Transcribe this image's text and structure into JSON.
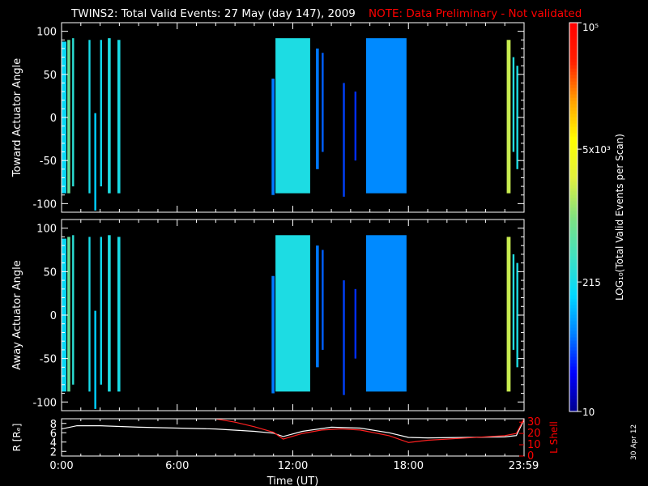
{
  "header": {
    "title": "TWINS2: Total Valid Events: 27 May (day 147), 2009",
    "note": "NOTE: Data Preliminary - Not validated"
  },
  "footer": {
    "date_stamp": "30 Apr 12"
  },
  "colors": {
    "background": "#000000",
    "axes": "#ffffff",
    "note": "#ff0000",
    "r_line": "#ffffff",
    "lshell_line": "#ff2020",
    "colorscale": [
      "#00008c",
      "#0000ff",
      "#0080ff",
      "#00d8ff",
      "#40e0c0",
      "#80e080",
      "#e0f040",
      "#ffff00",
      "#ffa000",
      "#ff2000",
      "#ff0000"
    ]
  },
  "chart_data": [
    {
      "type": "heatmap",
      "panel": "toward",
      "ylabel": "Toward Actuator Angle",
      "ylim": [
        -110,
        110
      ],
      "yticks": [
        "100",
        "50",
        "0",
        "-50",
        "-100"
      ],
      "xlim_hours": [
        0,
        24
      ],
      "bands": [
        {
          "t0": 0.0,
          "t1": 0.25,
          "value": 180,
          "y0": -88,
          "y1": 88
        },
        {
          "t0": 0.3,
          "t1": 0.45,
          "value": 700,
          "y0": -88,
          "y1": 90
        },
        {
          "t0": 0.55,
          "t1": 0.65,
          "value": 300,
          "y0": -80,
          "y1": 92
        },
        {
          "t0": 1.4,
          "t1": 1.5,
          "value": 220,
          "y0": -88,
          "y1": 90
        },
        {
          "t0": 1.7,
          "t1": 1.8,
          "value": 150,
          "y0": -108,
          "y1": 5
        },
        {
          "t0": 2.0,
          "t1": 2.1,
          "value": 200,
          "y0": -80,
          "y1": 90
        },
        {
          "t0": 2.4,
          "t1": 2.55,
          "value": 250,
          "y0": -88,
          "y1": 92
        },
        {
          "t0": 2.9,
          "t1": 3.05,
          "value": 230,
          "y0": -88,
          "y1": 90
        },
        {
          "t0": 10.9,
          "t1": 11.05,
          "value": 60,
          "y0": -90,
          "y1": 45
        },
        {
          "t0": 11.1,
          "t1": 12.9,
          "value": 240,
          "y0": -88,
          "y1": 92
        },
        {
          "t0": 13.2,
          "t1": 13.35,
          "value": 60,
          "y0": -60,
          "y1": 80
        },
        {
          "t0": 13.5,
          "t1": 13.6,
          "value": 50,
          "y0": -40,
          "y1": 75
        },
        {
          "t0": 14.6,
          "t1": 14.7,
          "value": 40,
          "y0": -92,
          "y1": 40
        },
        {
          "t0": 15.2,
          "t1": 15.3,
          "value": 35,
          "y0": -50,
          "y1": 30
        },
        {
          "t0": 15.8,
          "t1": 17.9,
          "value": 70,
          "y0": -88,
          "y1": 92
        },
        {
          "t0": 23.1,
          "t1": 23.3,
          "value": 2000,
          "y0": -88,
          "y1": 90
        },
        {
          "t0": 23.4,
          "t1": 23.5,
          "value": 260,
          "y0": -40,
          "y1": 70
        },
        {
          "t0": 23.6,
          "t1": 23.7,
          "value": 240,
          "y0": -60,
          "y1": 60
        }
      ]
    },
    {
      "type": "heatmap",
      "panel": "away",
      "ylabel": "Away Actuator Angle",
      "ylim": [
        -110,
        110
      ],
      "yticks": [
        "100",
        "50",
        "0",
        "-50",
        "-100"
      ],
      "xlim_hours": [
        0,
        24
      ],
      "bands": [
        {
          "t0": 0.0,
          "t1": 0.25,
          "value": 180,
          "y0": -88,
          "y1": 88
        },
        {
          "t0": 0.3,
          "t1": 0.45,
          "value": 700,
          "y0": -88,
          "y1": 90
        },
        {
          "t0": 0.55,
          "t1": 0.65,
          "value": 300,
          "y0": -80,
          "y1": 92
        },
        {
          "t0": 1.4,
          "t1": 1.5,
          "value": 220,
          "y0": -88,
          "y1": 90
        },
        {
          "t0": 1.7,
          "t1": 1.8,
          "value": 150,
          "y0": -108,
          "y1": 5
        },
        {
          "t0": 2.0,
          "t1": 2.1,
          "value": 200,
          "y0": -80,
          "y1": 90
        },
        {
          "t0": 2.4,
          "t1": 2.55,
          "value": 250,
          "y0": -88,
          "y1": 92
        },
        {
          "t0": 2.9,
          "t1": 3.05,
          "value": 230,
          "y0": -88,
          "y1": 90
        },
        {
          "t0": 10.9,
          "t1": 11.05,
          "value": 60,
          "y0": -90,
          "y1": 45
        },
        {
          "t0": 11.1,
          "t1": 12.9,
          "value": 240,
          "y0": -88,
          "y1": 92
        },
        {
          "t0": 13.2,
          "t1": 13.35,
          "value": 60,
          "y0": -60,
          "y1": 80
        },
        {
          "t0": 13.5,
          "t1": 13.6,
          "value": 50,
          "y0": -40,
          "y1": 75
        },
        {
          "t0": 14.6,
          "t1": 14.7,
          "value": 40,
          "y0": -92,
          "y1": 40
        },
        {
          "t0": 15.2,
          "t1": 15.3,
          "value": 35,
          "y0": -50,
          "y1": 30
        },
        {
          "t0": 15.8,
          "t1": 17.9,
          "value": 70,
          "y0": -88,
          "y1": 92
        },
        {
          "t0": 23.1,
          "t1": 23.3,
          "value": 2000,
          "y0": -88,
          "y1": 90
        },
        {
          "t0": 23.4,
          "t1": 23.5,
          "value": 260,
          "y0": -40,
          "y1": 70
        },
        {
          "t0": 23.6,
          "t1": 23.7,
          "value": 240,
          "y0": -60,
          "y1": 60
        }
      ]
    },
    {
      "type": "line",
      "panel": "orbit",
      "ylabel": "R [Rₑ]",
      "y2label": "L Shell",
      "xlabel": "Time (UT)",
      "xticks": [
        {
          "hour": 0,
          "label": "0:00"
        },
        {
          "hour": 6,
          "label": "6:00"
        },
        {
          "hour": 12,
          "label": "12:00"
        },
        {
          "hour": 18,
          "label": "18:00"
        },
        {
          "hour": 23.98,
          "label": "23:59"
        }
      ],
      "ylim": [
        1,
        9
      ],
      "yticks": [
        "8",
        "6",
        "4",
        "2"
      ],
      "y2lim": [
        0,
        33
      ],
      "y2ticks": [
        "30",
        "20",
        "10",
        "0"
      ],
      "series": [
        {
          "name": "R",
          "color": "#ffffff",
          "x": [
            0,
            0.8,
            2,
            4,
            6,
            8,
            10,
            11,
            11.5,
            12.5,
            14,
            15.5,
            17,
            18,
            19,
            21,
            23,
            23.6,
            24
          ],
          "y": [
            6.8,
            7.5,
            7.5,
            7.2,
            7.0,
            6.8,
            6.3,
            5.9,
            5.2,
            6.3,
            7.2,
            7.0,
            6.0,
            5.0,
            4.9,
            5.0,
            5.1,
            5.4,
            8.8
          ]
        },
        {
          "name": "L Shell",
          "color": "#ff2020",
          "x": [
            8,
            9,
            10,
            11,
            11.5,
            12.5,
            13.5,
            14.5,
            15.5,
            17,
            18,
            19,
            21,
            23,
            23.6,
            24
          ],
          "y": [
            33,
            30,
            26,
            21,
            15,
            20,
            23,
            24,
            23,
            18,
            12,
            14,
            16,
            18,
            20,
            33
          ]
        }
      ]
    },
    {
      "type": "heatmap",
      "panel": "colorbar",
      "ylabel": "LOG₁₀(Total Valid Events per Scan)",
      "scale": "log",
      "range": [
        10,
        100000
      ],
      "tick_labels": [
        {
          "value": 10,
          "label": "10"
        },
        {
          "value": 215,
          "label": "215"
        },
        {
          "value": 5000,
          "label": "5x10³"
        },
        {
          "value": 100000,
          "label": "10⁵"
        }
      ]
    }
  ]
}
